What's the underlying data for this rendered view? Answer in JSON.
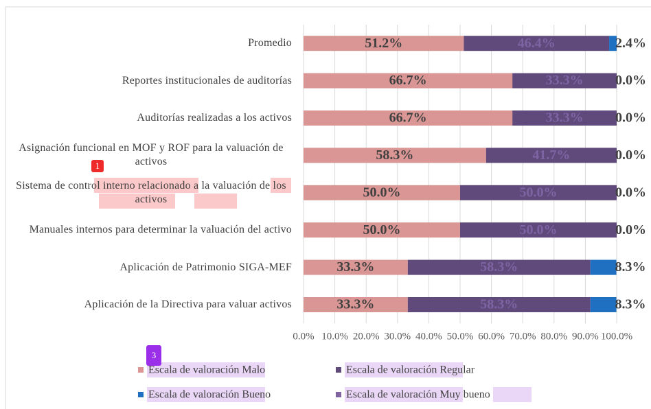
{
  "chart_data": {
    "type": "stacked_barh",
    "categories": [
      "Promedio",
      "Reportes institucionales de auditorías",
      "Auditorías realizadas a los activos",
      "Asignación funcional en MOF y ROF para la valuación de activos",
      "Sistema de control interno relacionado a la valuación de los activos",
      "Manuales internos para determinar la valuación del activo",
      "Aplicación de  Patrimonio SIGA-MEF",
      "Aplicación de la Directiva para valuar activos"
    ],
    "series": [
      {
        "name": "Escala de valoración Malo",
        "color": "#d99694",
        "label_color": "#404040",
        "values": [
          51.2,
          66.7,
          66.7,
          58.3,
          50.0,
          50.0,
          33.3,
          33.3
        ],
        "value_labels": [
          "51.2%",
          "66.7%",
          "66.7%",
          "58.3%",
          "50.0%",
          "50.0%",
          "33.3%",
          "33.3%"
        ]
      },
      {
        "name": "Escala de valoración Regular",
        "color": "#5f4a7b",
        "label_color": "#7f64a4",
        "values": [
          46.4,
          33.3,
          33.3,
          41.7,
          50.0,
          50.0,
          58.3,
          58.3
        ],
        "value_labels": [
          "46.4%",
          "33.3%",
          "33.3%",
          "41.7%",
          "50.0%",
          "50.0%",
          "58.3%",
          "58.3%"
        ]
      },
      {
        "name": "Escala de valoración Bueno",
        "color": "#1f70c1",
        "label_color": "#404040",
        "values": [
          2.4,
          0,
          0,
          0,
          0,
          0,
          8.3,
          8.3
        ],
        "value_labels": [
          "2.4%",
          "0.0%",
          "0.0%",
          "0.0%",
          "0.0%",
          "0.0%",
          "8.3%",
          "8.3%"
        ]
      },
      {
        "name": "Escala de valoración Muy bueno",
        "color": "#8064a2",
        "values": [
          0,
          0,
          0,
          0,
          0,
          0,
          0,
          0
        ]
      }
    ],
    "xlim": [
      0,
      100
    ],
    "xticks": [
      {
        "value": 0,
        "label": "0.0%"
      },
      {
        "value": 10,
        "label": "10.0%"
      },
      {
        "value": 20,
        "label": "20.0%"
      },
      {
        "value": 30,
        "label": "30.0%"
      },
      {
        "value": 40,
        "label": "40.0%"
      },
      {
        "value": 50,
        "label": "50.0%"
      },
      {
        "value": 60,
        "label": "60.0%"
      },
      {
        "value": 70,
        "label": "70.0%"
      },
      {
        "value": 80,
        "label": "80.0%"
      },
      {
        "value": 90,
        "label": "90.0%"
      },
      {
        "value": 100,
        "label": "100.0%"
      }
    ],
    "grid": true,
    "legend": "bottom",
    "annotations": [
      "1",
      "3"
    ]
  }
}
